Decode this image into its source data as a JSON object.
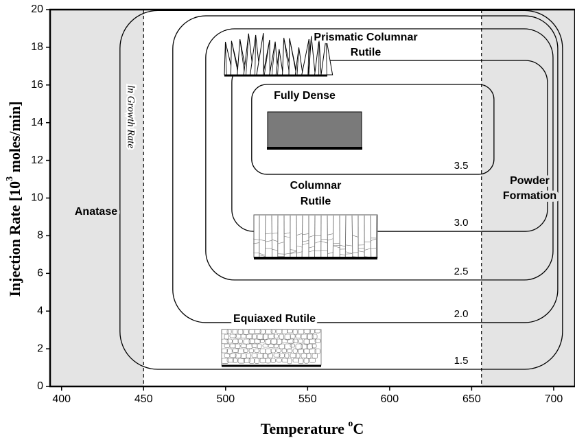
{
  "chart_data": {
    "type": "contour",
    "xlabel": [
      "Temperature ",
      "o",
      "C"
    ],
    "ylabel": [
      "Injection Rate [10",
      "3",
      " moles/min]"
    ],
    "xlim": [
      393,
      713
    ],
    "ylim": [
      0,
      20
    ],
    "xticks": [
      400,
      450,
      500,
      550,
      600,
      650,
      700
    ],
    "yticks": [
      0,
      2,
      4,
      6,
      8,
      10,
      12,
      14,
      16,
      18,
      20
    ],
    "shaded_x": [
      [
        393,
        450
      ],
      [
        656,
        713
      ]
    ],
    "shade_color": "#e4e4e4",
    "contours": [
      {
        "level": "1.5",
        "x": [
          435.6,
          705.4
        ],
        "y": [
          0.91,
          19.95
        ]
      },
      {
        "level": "2.0",
        "x": [
          467.8,
          702.5
        ],
        "y": [
          3.39,
          19.67
        ]
      },
      {
        "level": "2.5",
        "x": [
          487.9,
          699.6
        ],
        "y": [
          5.65,
          18.98
        ]
      },
      {
        "level": "3.0",
        "x": [
          503.8,
          696.2
        ],
        "y": [
          8.23,
          17.3
        ]
      },
      {
        "level": "3.5",
        "x": [
          515.9,
          663.6
        ],
        "y": [
          11.26,
          16.03
        ]
      }
    ],
    "annotations": [
      "Anatase",
      "Powder",
      "Formation",
      "Fully Dense",
      "Columnar",
      "Rutile",
      "Equiaxed Rutile",
      "Prismatic Columnar",
      "Rutile",
      "ln Growth Rate"
    ]
  }
}
